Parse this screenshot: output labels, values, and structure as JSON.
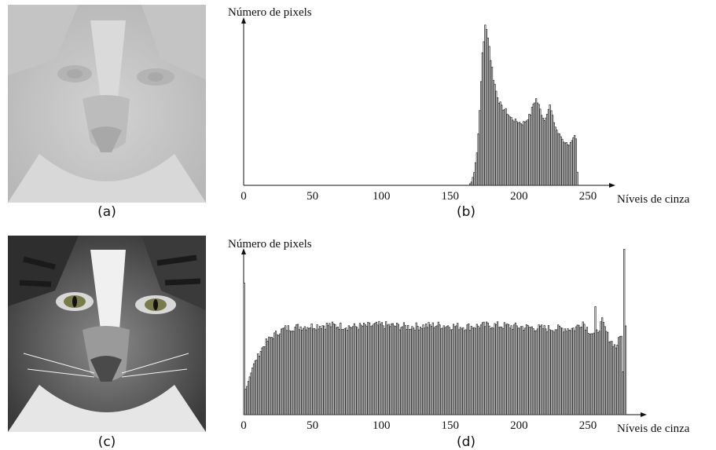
{
  "panels": {
    "a": {
      "caption": "(a)"
    },
    "b": {
      "caption": "(b)"
    },
    "c": {
      "caption": "(c)"
    },
    "d": {
      "caption": "(d)"
    }
  },
  "photos": {
    "a": {
      "subject": "cat face, low contrast",
      "tone": "#bdbdbd"
    },
    "c": {
      "subject": "cat face, equalized",
      "tone": "#6a6a6a"
    }
  },
  "chart_data": [
    {
      "type": "bar",
      "panel": "b",
      "title": "",
      "ylabel": "Número de pixels",
      "xlabel": "Níveis de cinza",
      "xlim": [
        0,
        255
      ],
      "ylim": [
        0,
        1.0
      ],
      "xticks": [
        0,
        50,
        100,
        150,
        200,
        250
      ],
      "grid": false,
      "anchors": [
        [
          163,
          0.0
        ],
        [
          165,
          0.02
        ],
        [
          167,
          0.08
        ],
        [
          169,
          0.2
        ],
        [
          171,
          0.45
        ],
        [
          173,
          0.82
        ],
        [
          175,
          0.97
        ],
        [
          177,
          0.93
        ],
        [
          179,
          0.78
        ],
        [
          181,
          0.66
        ],
        [
          183,
          0.58
        ],
        [
          185,
          0.52
        ],
        [
          187,
          0.48
        ],
        [
          190,
          0.46
        ],
        [
          193,
          0.42
        ],
        [
          196,
          0.4
        ],
        [
          199,
          0.39
        ],
        [
          202,
          0.38
        ],
        [
          205,
          0.4
        ],
        [
          208,
          0.44
        ],
        [
          210,
          0.5
        ],
        [
          212,
          0.53
        ],
        [
          214,
          0.49
        ],
        [
          216,
          0.44
        ],
        [
          218,
          0.4
        ],
        [
          220,
          0.45
        ],
        [
          222,
          0.49
        ],
        [
          224,
          0.42
        ],
        [
          226,
          0.36
        ],
        [
          228,
          0.32
        ],
        [
          230,
          0.3
        ],
        [
          232,
          0.27
        ],
        [
          234,
          0.26
        ],
        [
          236,
          0.25
        ],
        [
          238,
          0.27
        ],
        [
          240,
          0.3
        ],
        [
          241,
          0.28
        ],
        [
          242,
          0.08
        ],
        [
          243,
          0.0
        ]
      ]
    },
    {
      "type": "bar",
      "panel": "d",
      "title": "",
      "ylabel": "Número de pixels",
      "xlabel": "Níveis de cinza",
      "xlim": [
        0,
        255
      ],
      "ylim": [
        0,
        1.0
      ],
      "xticks": [
        0,
        50,
        100,
        150,
        200,
        250
      ],
      "grid": false,
      "anchors": [
        [
          0,
          0.78
        ],
        [
          1,
          0.15
        ],
        [
          3,
          0.2
        ],
        [
          6,
          0.28
        ],
        [
          9,
          0.33
        ],
        [
          12,
          0.38
        ],
        [
          16,
          0.43
        ],
        [
          20,
          0.46
        ],
        [
          25,
          0.49
        ],
        [
          30,
          0.51
        ],
        [
          40,
          0.52
        ],
        [
          60,
          0.53
        ],
        [
          80,
          0.52
        ],
        [
          100,
          0.53
        ],
        [
          120,
          0.52
        ],
        [
          140,
          0.53
        ],
        [
          160,
          0.52
        ],
        [
          180,
          0.53
        ],
        [
          200,
          0.52
        ],
        [
          220,
          0.51
        ],
        [
          240,
          0.51
        ],
        [
          246,
          0.55
        ],
        [
          250,
          0.5
        ],
        [
          255,
          0.47
        ],
        [
          260,
          0.55
        ],
        [
          265,
          0.45
        ],
        [
          270,
          0.4
        ],
        [
          274,
          0.48
        ],
        [
          275,
          0.25
        ],
        [
          276,
          0.98
        ],
        [
          277,
          0.55
        ]
      ],
      "spikes": [
        [
          0,
          0.78
        ],
        [
          255,
          0.64
        ],
        [
          276,
          0.98
        ]
      ]
    }
  ]
}
